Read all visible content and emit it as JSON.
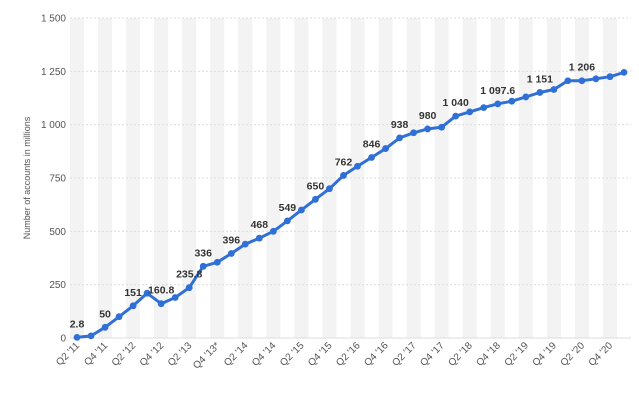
{
  "chart_data": {
    "type": "line",
    "title": "",
    "xlabel": "",
    "ylabel": "Number of accounts in millions",
    "ylim": [
      0,
      1500
    ],
    "yticks": [
      0,
      250,
      500,
      750,
      1000,
      1250,
      1500
    ],
    "ytick_labels": [
      "0",
      "250",
      "500",
      "750",
      "1 000",
      "1 250",
      "1 500"
    ],
    "grid": true,
    "legend": "none",
    "line_color": "#2f6fd6",
    "band_color": "#f3f3f3",
    "x": [
      "Q2 '11",
      "Q3 '11",
      "Q4 '11",
      "Q1 '12",
      "Q2 '12",
      "Q3 '12",
      "Q4 '12",
      "Q1 '13",
      "Q2 '13",
      "Q3 '13",
      "Q4 '13*",
      "Q1 '14",
      "Q2 '14",
      "Q3 '14",
      "Q4 '14",
      "Q1 '15",
      "Q2 '15",
      "Q3 '15",
      "Q4 '15",
      "Q1 '16",
      "Q2 '16",
      "Q3 '16",
      "Q4 '16",
      "Q1 '17",
      "Q2 '17",
      "Q3 '17",
      "Q4 '17",
      "Q1 '18",
      "Q2 '18",
      "Q3 '18",
      "Q4 '18",
      "Q1 '19",
      "Q2 '19",
      "Q3 '19",
      "Q4 '19",
      "Q1 '20",
      "Q2 '20",
      "Q3 '20",
      "Q4 '20",
      "Q1 '21"
    ],
    "xtick_labels": [
      "Q2 '11",
      "Q4 '11",
      "Q2 '12",
      "Q4 '12",
      "Q2 '13",
      "Q4 '13*",
      "Q2 '14",
      "Q4 '14",
      "Q2 '15",
      "Q4 '15",
      "Q2 '16",
      "Q4 '16",
      "Q2 '17",
      "Q4 '17",
      "Q2 '18",
      "Q4 '18",
      "Q2 '19",
      "Q4 '19",
      "Q2 '20",
      "Q4 '20"
    ],
    "values": [
      2.8,
      10,
      50,
      100,
      151,
      210,
      160.8,
      190,
      235.8,
      336,
      355,
      396,
      440,
      468,
      500,
      549,
      600,
      650,
      700,
      762,
      805,
      846,
      888,
      938,
      962,
      980,
      988,
      1040,
      1060,
      1080,
      1097.6,
      1110,
      1130,
      1151,
      1165,
      1206,
      1206,
      1215,
      1225,
      1245
    ],
    "data_labels": [
      {
        "index": 0,
        "text": "2.8"
      },
      {
        "index": 2,
        "text": "50"
      },
      {
        "index": 4,
        "text": "151"
      },
      {
        "index": 6,
        "text": "160.8"
      },
      {
        "index": 8,
        "text": "235.8"
      },
      {
        "index": 9,
        "text": "336"
      },
      {
        "index": 11,
        "text": "396"
      },
      {
        "index": 13,
        "text": "468"
      },
      {
        "index": 15,
        "text": "549"
      },
      {
        "index": 17,
        "text": "650"
      },
      {
        "index": 19,
        "text": "762"
      },
      {
        "index": 21,
        "text": "846"
      },
      {
        "index": 23,
        "text": "938"
      },
      {
        "index": 25,
        "text": "980"
      },
      {
        "index": 27,
        "text": "1 040"
      },
      {
        "index": 30,
        "text": "1 097.6"
      },
      {
        "index": 33,
        "text": "1 151"
      },
      {
        "index": 36,
        "text": "1 206"
      }
    ]
  }
}
